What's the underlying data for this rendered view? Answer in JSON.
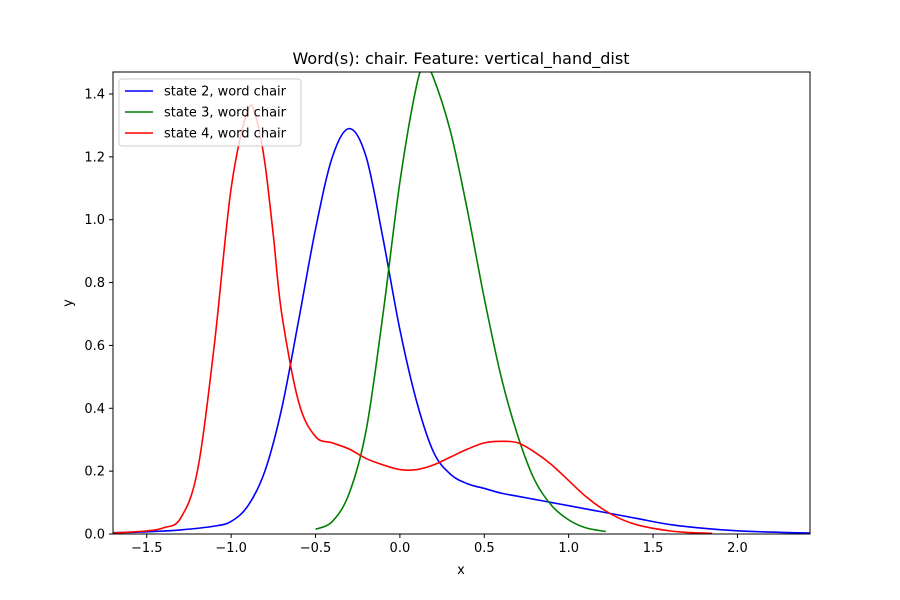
{
  "chart_data": {
    "type": "line",
    "title": "Word(s): chair. Feature: vertical_hand_dist",
    "xlabel": "x",
    "ylabel": "y",
    "xlim": [
      -1.7,
      2.43
    ],
    "ylim": [
      0,
      1.47
    ],
    "xticks": [
      "−1.5",
      "−1.0",
      "−0.5",
      "0.0",
      "0.5",
      "1.0",
      "1.5",
      "2.0"
    ],
    "xtick_values": [
      -1.5,
      -1.0,
      -0.5,
      0.0,
      0.5,
      1.0,
      1.5,
      2.0
    ],
    "yticks": [
      "0.0",
      "0.2",
      "0.4",
      "0.6",
      "0.8",
      "1.0",
      "1.2",
      "1.4"
    ],
    "ytick_values": [
      0.0,
      0.2,
      0.4,
      0.6,
      0.8,
      1.0,
      1.2,
      1.4
    ],
    "grid": false,
    "legend_position": "upper-left",
    "series": [
      {
        "name": "state 2, word chair",
        "color": "#0000ff",
        "x": [
          -1.7,
          -1.5,
          -1.3,
          -1.1,
          -1.0,
          -0.9,
          -0.8,
          -0.7,
          -0.6,
          -0.5,
          -0.4,
          -0.3,
          -0.2,
          -0.1,
          0.0,
          0.1,
          0.2,
          0.3,
          0.4,
          0.5,
          0.6,
          0.7,
          0.8,
          0.9,
          1.0,
          1.2,
          1.4,
          1.6,
          1.8,
          2.0,
          2.2,
          2.43
        ],
        "y": [
          0.004,
          0.007,
          0.013,
          0.025,
          0.04,
          0.09,
          0.2,
          0.4,
          0.68,
          0.97,
          1.2,
          1.29,
          1.2,
          0.94,
          0.65,
          0.42,
          0.26,
          0.19,
          0.16,
          0.145,
          0.13,
          0.12,
          0.11,
          0.1,
          0.09,
          0.07,
          0.05,
          0.03,
          0.018,
          0.01,
          0.006,
          0.003
        ]
      },
      {
        "name": "state 3, word chair",
        "color": "#008000",
        "x": [
          -0.5,
          -0.4,
          -0.3,
          -0.2,
          -0.1,
          0.0,
          0.1,
          0.15,
          0.2,
          0.3,
          0.4,
          0.5,
          0.6,
          0.7,
          0.8,
          0.9,
          1.0,
          1.1,
          1.22
        ],
        "y": [
          0.015,
          0.04,
          0.13,
          0.33,
          0.7,
          1.12,
          1.43,
          1.49,
          1.45,
          1.28,
          1.03,
          0.75,
          0.5,
          0.31,
          0.17,
          0.09,
          0.045,
          0.02,
          0.008
        ]
      },
      {
        "name": "state 4, word chair",
        "color": "#ff0000",
        "x": [
          -1.7,
          -1.5,
          -1.4,
          -1.3,
          -1.2,
          -1.1,
          -1.0,
          -0.9,
          -0.85,
          -0.8,
          -0.75,
          -0.7,
          -0.6,
          -0.5,
          -0.4,
          -0.3,
          -0.2,
          -0.1,
          0.0,
          0.1,
          0.2,
          0.3,
          0.4,
          0.5,
          0.6,
          0.7,
          0.8,
          0.9,
          1.0,
          1.1,
          1.2,
          1.3,
          1.4,
          1.5,
          1.6,
          1.7,
          1.85
        ],
        "y": [
          0.003,
          0.01,
          0.02,
          0.05,
          0.2,
          0.6,
          1.1,
          1.35,
          1.32,
          1.18,
          0.95,
          0.7,
          0.42,
          0.31,
          0.29,
          0.27,
          0.24,
          0.22,
          0.205,
          0.205,
          0.22,
          0.245,
          0.27,
          0.29,
          0.295,
          0.29,
          0.26,
          0.22,
          0.17,
          0.12,
          0.08,
          0.05,
          0.03,
          0.018,
          0.01,
          0.005,
          0.002
        ]
      }
    ]
  }
}
